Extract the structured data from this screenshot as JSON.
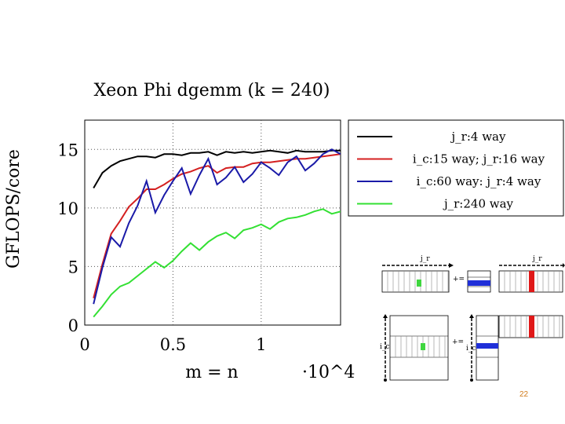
{
  "title": "Xeon Phi dgemm (k = 240)",
  "page_number": "22",
  "colors": {
    "black": "#000000",
    "red": "#d42020",
    "blue": "#1a1aa8",
    "green": "#33e033",
    "page_num": "#d07a1a"
  },
  "chart_data": {
    "type": "line",
    "title": "Xeon Phi dgemm (k = 240)",
    "xlabel": "m = n",
    "xlabel_multiplier": "·10^4",
    "ylabel": "GFLOPS/core",
    "xlim": [
      0,
      1.45
    ],
    "ylim": [
      0,
      17.5
    ],
    "xticks": [
      0,
      0.5,
      1
    ],
    "xtick_labels": [
      "0",
      "0.5",
      "1"
    ],
    "yticks": [
      0,
      5,
      10,
      15
    ],
    "ytick_labels": [
      "0",
      "5",
      "10",
      "15"
    ],
    "grid": true,
    "legend_position": "top-right",
    "x": [
      0.05,
      0.1,
      0.15,
      0.2,
      0.25,
      0.3,
      0.35,
      0.4,
      0.45,
      0.5,
      0.55,
      0.6,
      0.65,
      0.7,
      0.75,
      0.8,
      0.85,
      0.9,
      0.95,
      1.0,
      1.05,
      1.1,
      1.15,
      1.2,
      1.25,
      1.3,
      1.35,
      1.4,
      1.45
    ],
    "series": [
      {
        "name": "j_r:4 way",
        "color": "#000000",
        "values": [
          11.7,
          13.0,
          13.6,
          14.0,
          14.2,
          14.4,
          14.4,
          14.3,
          14.6,
          14.6,
          14.5,
          14.7,
          14.7,
          14.8,
          14.5,
          14.8,
          14.7,
          14.8,
          14.7,
          14.8,
          14.9,
          14.8,
          14.7,
          14.9,
          14.8,
          14.8,
          14.8,
          14.9,
          14.9
        ]
      },
      {
        "name": "i_c:15 way; j_r:16 way",
        "color": "#d42020",
        "values": [
          2.3,
          5.2,
          7.8,
          8.9,
          10.1,
          10.8,
          11.6,
          11.6,
          12.0,
          12.5,
          12.9,
          13.1,
          13.4,
          13.6,
          13.0,
          13.4,
          13.5,
          13.5,
          13.8,
          13.9,
          13.9,
          14.0,
          14.1,
          14.2,
          14.2,
          14.3,
          14.4,
          14.5,
          14.6
        ]
      },
      {
        "name": "i_c:60 way: j_r:4 way",
        "color": "#1a1aa8",
        "values": [
          1.8,
          4.9,
          7.5,
          6.7,
          8.7,
          10.2,
          12.3,
          9.6,
          11.1,
          12.3,
          13.4,
          11.2,
          12.8,
          14.2,
          12.0,
          12.6,
          13.5,
          12.2,
          12.9,
          13.9,
          13.4,
          12.8,
          13.9,
          14.4,
          13.2,
          13.8,
          14.6,
          15.0,
          14.6
        ]
      },
      {
        "name": "j_r:240 way",
        "color": "#33e033",
        "values": [
          0.7,
          1.6,
          2.6,
          3.3,
          3.6,
          4.2,
          4.8,
          5.4,
          4.9,
          5.5,
          6.3,
          7.0,
          6.4,
          7.1,
          7.6,
          7.9,
          7.4,
          8.1,
          8.3,
          8.6,
          8.2,
          8.8,
          9.1,
          9.2,
          9.4,
          9.7,
          9.9,
          9.5,
          9.7
        ]
      }
    ]
  },
  "diagram": {
    "top_left_label": "j_r",
    "top_right_label": "j_r",
    "bottom_left_label": "i_c",
    "bottom_mid_label": "i_c",
    "plus_eq_top": "+=",
    "plus_eq_bottom": "+="
  }
}
